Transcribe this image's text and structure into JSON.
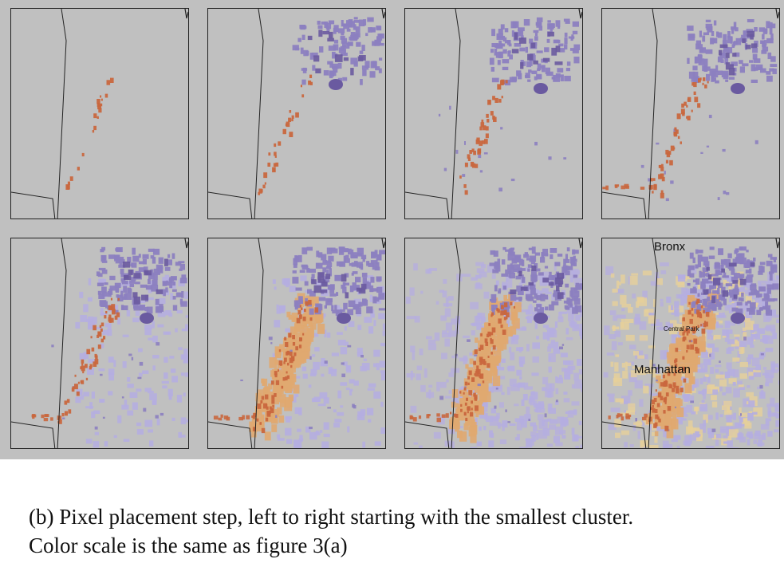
{
  "figure": {
    "colors": {
      "background": "#c0c0c0",
      "orange_dark": "#c9673e",
      "orange_light": "#e0a870",
      "yellow_pale": "#e6cf9a",
      "purple_dark": "#6a5aa0",
      "purple_mid": "#8c80c0",
      "purple_light": "#b5aee0",
      "outline": "#222222"
    },
    "panels": [
      {
        "name": "step-1",
        "stage": 1
      },
      {
        "name": "step-2",
        "stage": 2
      },
      {
        "name": "step-3",
        "stage": 3
      },
      {
        "name": "step-4",
        "stage": 4
      },
      {
        "name": "step-5",
        "stage": 5
      },
      {
        "name": "step-6",
        "stage": 6
      },
      {
        "name": "step-7",
        "stage": 7
      },
      {
        "name": "step-8",
        "stage": 8
      }
    ],
    "labels": {
      "bronx": "Bronx",
      "central_park": "Central Park",
      "manhattan": "Manhattan"
    }
  },
  "caption": {
    "line1": "(b) Pixel placement step, left to right starting with the smallest cluster.",
    "line2": "Color scale is the same as figure 3(a)"
  }
}
